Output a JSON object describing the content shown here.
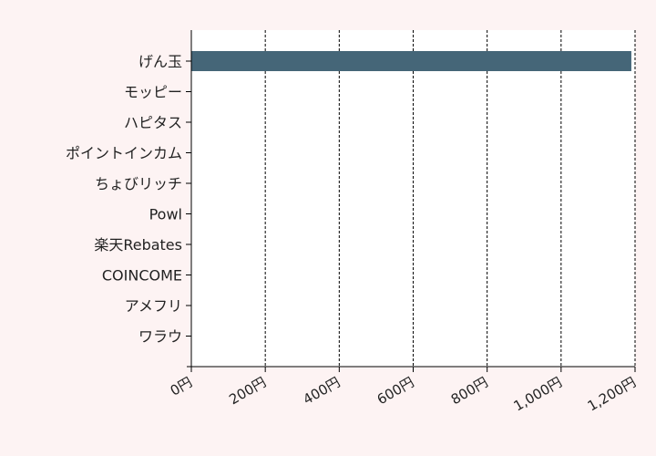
{
  "chart_data": {
    "type": "bar",
    "orientation": "horizontal",
    "categories": [
      "げん玉",
      "モッピー",
      "ハピタス",
      "ポイントインカム",
      "ちょびリッチ",
      "Powl",
      "楽天Rebates",
      "COINCOME",
      "アメフリ",
      "ワラウ"
    ],
    "values": [
      1190,
      0,
      0,
      0,
      0,
      0,
      0,
      0,
      0,
      0
    ],
    "xlim": [
      0,
      1200
    ],
    "xticks": [
      0,
      200,
      400,
      600,
      800,
      1000,
      1200
    ],
    "xtick_labels": [
      "0円",
      "200円",
      "400円",
      "600円",
      "800円",
      "1,000円",
      "1,200円"
    ],
    "grid": "vertical-dashed",
    "bar_color": "#456678",
    "plot_background": "#ffffff",
    "page_background": "#fdf3f3"
  }
}
